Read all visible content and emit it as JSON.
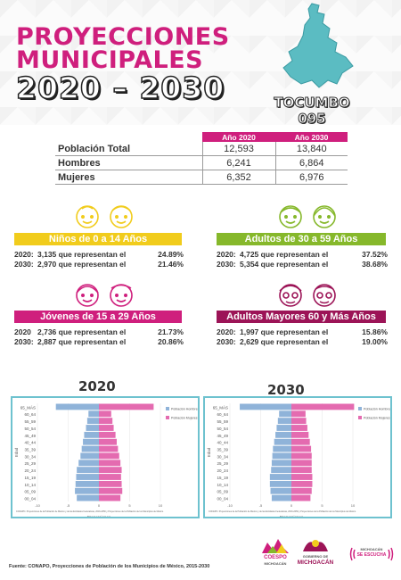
{
  "header": {
    "title_line1": "PROYECCIONES",
    "title_line2": "MUNICIPALES",
    "years": "2020 – 2030"
  },
  "municipality": {
    "name": "TOCUMBO",
    "code": "095"
  },
  "population_table": {
    "columns": [
      "Año 2020",
      "Año 2030"
    ],
    "rows": [
      {
        "label": "Población Total",
        "y2020": "12,593",
        "y2030": "13,840"
      },
      {
        "label": "Hombres",
        "y2020": "6,241",
        "y2030": "6,864"
      },
      {
        "label": "Mujeres",
        "y2020": "6,352",
        "y2030": "6,976"
      }
    ]
  },
  "groups": {
    "ninos": {
      "title": "Niños de 0 a 14 Años",
      "color": "#f1cc1c",
      "r2020": {
        "year": "2020:",
        "text": "3,135 que representan el",
        "pct": "24.89%"
      },
      "r2030": {
        "year": "2030:",
        "text": "2,970 que representan el",
        "pct": "21.46%"
      }
    },
    "adultos": {
      "title": "Adultos de 30 a 59 Años",
      "color": "#86b82b",
      "r2020": {
        "year": "2020:",
        "text": "4,725 que representan el",
        "pct": "37.52%"
      },
      "r2030": {
        "year": "2030:",
        "text": "5,354 que representan el",
        "pct": "38.68%"
      }
    },
    "jovenes": {
      "title": "Jóvenes de 15 a 29 Años",
      "color": "#cf1f7d",
      "r2020": {
        "year": "2020",
        "text": "2,736 que representan el",
        "pct": "21.73%"
      },
      "r2030": {
        "year": "2030:",
        "text": "2,887 que representan el",
        "pct": "20.86%"
      }
    },
    "mayores": {
      "title": "Adultos Mayores  60 y Más Años",
      "color": "#9c1457",
      "r2020": {
        "year": "2020:",
        "text": "1,997 que representan el",
        "pct": "15.86%"
      },
      "r2030": {
        "year": "2030:",
        "text": "2,629 que representan el",
        "pct": "19.00%"
      }
    }
  },
  "colors": {
    "men": "#8fb3d9",
    "women": "#e46bb0",
    "pink": "#cf1f7d",
    "border": "#6ec2cf"
  },
  "chart_data": [
    {
      "type": "bar",
      "title": "2020",
      "orientation": "horizontal",
      "categories": [
        "00_04",
        "05_09",
        "10_14",
        "15_19",
        "20_24",
        "25_29",
        "30_34",
        "35_39",
        "40_44",
        "45_49",
        "50_54",
        "55_59",
        "60_64",
        "65_MÁS"
      ],
      "series": [
        {
          "name": "Población Hombres",
          "values": [
            -3.6,
            -3.9,
            -3.8,
            -3.7,
            -3.6,
            -3.3,
            -3.0,
            -2.8,
            -2.6,
            -2.4,
            -2.1,
            -1.9,
            -1.7,
            -7.0
          ]
        },
        {
          "name": "Población Mujeres",
          "values": [
            3.5,
            3.8,
            3.7,
            3.6,
            3.7,
            3.5,
            3.3,
            3.1,
            2.9,
            2.7,
            2.4,
            2.2,
            2.0,
            8.9
          ]
        }
      ],
      "xlabel": "Proporciones",
      "ylabel": "Edad",
      "xlim": [
        -10,
        10
      ],
      "note": "CONAPO. Proyecciones de la Población de México y de las Entidades Federativas, 2016-2050 y Proyecciones de la Población de los Municipios de México"
    },
    {
      "type": "bar",
      "title": "2030",
      "orientation": "horizontal",
      "categories": [
        "00_04",
        "05_09",
        "10_14",
        "15_19",
        "20_24",
        "25_29",
        "30_34",
        "35_39",
        "40_44",
        "45_49",
        "50_54",
        "55_59",
        "60_64",
        "65_MÁS"
      ],
      "series": [
        {
          "name": "Población Hombres",
          "values": [
            -3.2,
            -3.4,
            -3.5,
            -3.5,
            -3.3,
            -3.2,
            -3.1,
            -3.0,
            -2.8,
            -2.6,
            -2.4,
            -2.2,
            -2.0,
            -8.4
          ]
        },
        {
          "name": "Población Mujeres",
          "values": [
            3.1,
            3.3,
            3.4,
            3.4,
            3.3,
            3.3,
            3.3,
            3.2,
            3.0,
            2.8,
            2.6,
            2.4,
            2.3,
            10.2
          ]
        }
      ],
      "xlabel": "Proporciones",
      "ylabel": "Edad",
      "xlim": [
        -10,
        10
      ],
      "note": "CONAPO. Proyecciones de la Población de México y de las Entidades Federativas, 2016-2050 y Proyecciones de la Población de los Municipios de México"
    }
  ],
  "footer": {
    "source": "Fuente: CONAPO, Proyecciones de Población de los Municipios de México, 2015-2030"
  },
  "logos": {
    "coespo": "COESPO",
    "coespo_sub": "MICHOACÁN",
    "michoacan_top": "GOBIERNO DE",
    "michoacan": "MICHOACÁN",
    "escucha_top": "MICHOACÁN",
    "escucha": "SE ESCUCHA"
  }
}
